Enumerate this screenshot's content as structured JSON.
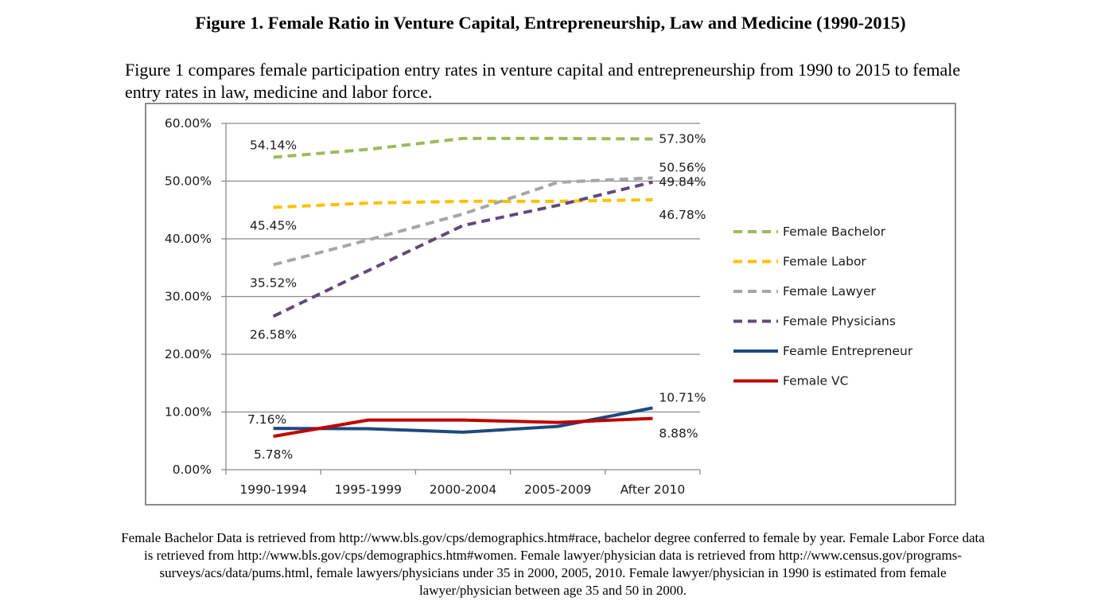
{
  "figure_title": "Figure 1. Female Ratio in Venture Capital, Entrepreneurship, Law and Medicine (1990-2015)",
  "intro_text": "Figure 1 compares female participation entry rates in venture capital and entrepreneurship from 1990 to 2015 to female entry rates in law, medicine and labor force.",
  "footnote": "Female Bachelor Data is retrieved from http://www.bls.gov/cps/demographics.htm#race, bachelor degree conferred to female by year. Female Labor Force data is retrieved from http://www.bls.gov/cps/demographics.htm#women. Female lawyer/physician data is retrieved from http://www.census.gov/programs-surveys/acs/data/pums.html, female lawyers/physicians under 35 in 2000, 2005, 2010. Female lawyer/physician in 1990 is estimated from female lawyer/physician between age 35 and 50 in 2000.",
  "chart_data": {
    "type": "line",
    "categories": [
      "1990-1994",
      "1995-1999",
      "2000-2004",
      "2005-2009",
      "After 2010"
    ],
    "ylim": [
      0,
      60
    ],
    "yticks": [
      "0.00%",
      "10.00%",
      "20.00%",
      "30.00%",
      "40.00%",
      "50.00%",
      "60.00%"
    ],
    "grid": true,
    "legend_position": "right",
    "series": [
      {
        "name": "Female Bachelor",
        "color": "#9bbb59",
        "dashed": true,
        "values": [
          54.14,
          55.5,
          57.4,
          57.4,
          57.3
        ],
        "labels": [
          {
            "index": 0,
            "text": "54.14%",
            "pos": "above"
          },
          {
            "index": 4,
            "text": "57.30%",
            "pos": "right"
          }
        ]
      },
      {
        "name": "Female Labor",
        "color": "#ffc000",
        "dashed": true,
        "values": [
          45.45,
          46.2,
          46.5,
          46.5,
          46.78
        ],
        "labels": [
          {
            "index": 0,
            "text": "45.45%",
            "pos": "below"
          },
          {
            "index": 4,
            "text": "46.78%",
            "pos": "right-below"
          }
        ]
      },
      {
        "name": "Female Lawyer",
        "color": "#a6a6a6",
        "dashed": true,
        "values": [
          35.52,
          39.8,
          44.3,
          49.8,
          50.56
        ],
        "labels": [
          {
            "index": 0,
            "text": "35.52%",
            "pos": "below"
          },
          {
            "index": 4,
            "text": "50.56%",
            "pos": "right-above"
          }
        ]
      },
      {
        "name": "Female Physicians",
        "color": "#604a7b",
        "dashed": true,
        "values": [
          26.58,
          34.5,
          42.3,
          45.8,
          49.84
        ],
        "labels": [
          {
            "index": 0,
            "text": "26.58%",
            "pos": "below"
          },
          {
            "index": 4,
            "text": "49.84%",
            "pos": "right"
          }
        ]
      },
      {
        "name": "Feamle Entrepreneur",
        "color": "#1f497d",
        "dashed": false,
        "values": [
          7.16,
          7.1,
          6.5,
          7.5,
          10.71
        ],
        "labels": [
          {
            "index": 0,
            "text": "7.16%",
            "pos": "left-above"
          },
          {
            "index": 4,
            "text": "10.71%",
            "pos": "right-above"
          }
        ]
      },
      {
        "name": "Female VC",
        "color": "#c00000",
        "dashed": false,
        "values": [
          5.78,
          8.6,
          8.6,
          8.2,
          8.88
        ],
        "labels": [
          {
            "index": 0,
            "text": "5.78%",
            "pos": "below"
          },
          {
            "index": 4,
            "text": "8.88%",
            "pos": "right-below"
          }
        ]
      }
    ]
  }
}
